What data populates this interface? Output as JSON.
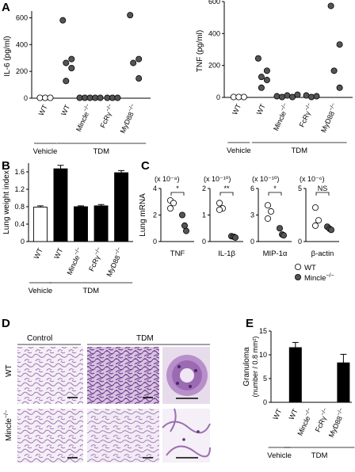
{
  "panels": {
    "A": "A",
    "B": "B",
    "C": "C",
    "D": "D",
    "E": "E"
  },
  "groups": {
    "vehicle": "Vehicle",
    "tdm": "TDM"
  },
  "genotypes": [
    "WT",
    "WT",
    "Mincle−/−",
    "FcRγ−/−",
    "MyD88−/−"
  ],
  "genotype_parts": [
    {
      "base": "WT",
      "sup": ""
    },
    {
      "base": "WT",
      "sup": ""
    },
    {
      "base": "Mincle",
      "sup": "−/−"
    },
    {
      "base": "FcRγ",
      "sup": "−/−"
    },
    {
      "base": "MyD88",
      "sup": "−/−"
    }
  ],
  "histology": {
    "col_control": "Control",
    "col_tdm": "TDM",
    "row_wt": "WT",
    "row_mincle_base": "Mincle",
    "row_mincle_sup": "−/−"
  },
  "legend_c": {
    "wt": "WT",
    "mincle_base": "Mincle",
    "mincle_sup": "−/−"
  },
  "chart_data": [
    {
      "panel": "A-left",
      "type": "scatter",
      "ylabel": "IL-6 (pg/ml)",
      "ylim": [
        0,
        650
      ],
      "yticks": [
        0,
        200,
        400,
        600
      ],
      "categories": [
        "WT (Vehicle)",
        "WT",
        "Mincle−/−",
        "FcRγ−/−",
        "MyD88−/−"
      ],
      "points": [
        {
          "cat": 0,
          "values": [
            0,
            0,
            0
          ],
          "fill": "open"
        },
        {
          "cat": 1,
          "values": [
            600,
            300,
            270,
            230,
            130
          ],
          "fill": "filled"
        },
        {
          "cat": 2,
          "values": [
            0,
            0,
            0,
            0,
            0
          ],
          "fill": "filled"
        },
        {
          "cat": 3,
          "values": [
            0,
            0,
            0
          ],
          "fill": "filled"
        },
        {
          "cat": 4,
          "values": [
            640,
            300,
            270,
            150
          ],
          "fill": "filled"
        }
      ]
    },
    {
      "panel": "A-right",
      "type": "scatter",
      "ylabel": "TNF (pg/ml)",
      "ylim": [
        0,
        600
      ],
      "yticks": [
        0,
        200,
        400,
        600
      ],
      "categories": [
        "WT (Vehicle)",
        "WT",
        "Mincle−/−",
        "FcRγ−/−",
        "MyD88−/−"
      ],
      "points": [
        {
          "cat": 0,
          "values": [
            0,
            0,
            0
          ],
          "fill": "open"
        },
        {
          "cat": 1,
          "values": [
            250,
            170,
            130,
            110,
            60
          ],
          "fill": "filled"
        },
        {
          "cat": 2,
          "values": [
            5,
            0,
            10,
            0,
            15
          ],
          "fill": "filled"
        },
        {
          "cat": 3,
          "values": [
            10,
            0,
            5
          ],
          "fill": "filled"
        },
        {
          "cat": 4,
          "values": [
            590,
            340,
            170,
            60
          ],
          "fill": "filled"
        }
      ]
    },
    {
      "panel": "B",
      "type": "bar",
      "ylabel": "Lung weight index",
      "ylim": [
        0,
        1.8
      ],
      "yticks": [
        0,
        0.4,
        0.8,
        1.2,
        1.6
      ],
      "categories": [
        "WT",
        "WT",
        "Mincle−/−",
        "FcRγ−/−",
        "MyD88−/−"
      ],
      "values": [
        0.79,
        1.67,
        0.8,
        0.82,
        1.58
      ],
      "errors": [
        0.03,
        0.08,
        0.02,
        0.03,
        0.05
      ],
      "fills": [
        "white",
        "black",
        "black",
        "black",
        "black"
      ]
    },
    {
      "panel": "C",
      "type": "scatter",
      "ylabel": "Lung mRNA",
      "subplots": [
        {
          "name": "TNF",
          "scale": "(x 10⁻⁸)",
          "ylim": [
            0,
            4
          ],
          "yticks": [
            0,
            2,
            4
          ],
          "sig": "*",
          "wt": [
            3.1,
            2.9,
            2.5
          ],
          "ko": [
            2.0,
            1.2,
            0.8
          ]
        },
        {
          "name": "IL-1β",
          "scale": "(x 10⁻¹⁰)",
          "ylim": [
            0,
            2
          ],
          "yticks": [
            0,
            1,
            2
          ],
          "sig": "**",
          "wt": [
            1.45,
            1.25,
            1.2
          ],
          "ko": [
            0.2,
            0.18,
            0.15
          ]
        },
        {
          "name": "MIP-1α",
          "scale": "(x 10⁻¹⁰)",
          "ylim": [
            0,
            6
          ],
          "yticks": [
            0,
            3,
            6
          ],
          "sig": "*",
          "wt": [
            4.1,
            3.4,
            2.6
          ],
          "ko": [
            1.5,
            0.8,
            0.7
          ]
        },
        {
          "name": "β-actin",
          "scale": "(x 10⁻⁶)",
          "ylim": [
            0,
            5
          ],
          "yticks": [
            0,
            5
          ],
          "sig": "NS",
          "wt": [
            3.2,
            2.0,
            1.5
          ],
          "ko": [
            1.4,
            1.2,
            1.1
          ]
        }
      ]
    },
    {
      "panel": "E",
      "type": "bar",
      "ylabel": "Granuloma",
      "ylabel2": "(number / 0.8 mm²)",
      "ylim": [
        0,
        15
      ],
      "yticks": [
        0,
        5,
        10,
        15
      ],
      "categories": [
        "WT",
        "WT",
        "Mincle−/−",
        "FcRγ−/−",
        "MyD88−/−"
      ],
      "values": [
        0,
        11.5,
        0,
        0,
        8.3
      ],
      "errors": [
        0,
        1.1,
        0,
        0,
        1.8
      ],
      "fills": [
        "white",
        "black",
        "black",
        "black",
        "black"
      ]
    }
  ]
}
